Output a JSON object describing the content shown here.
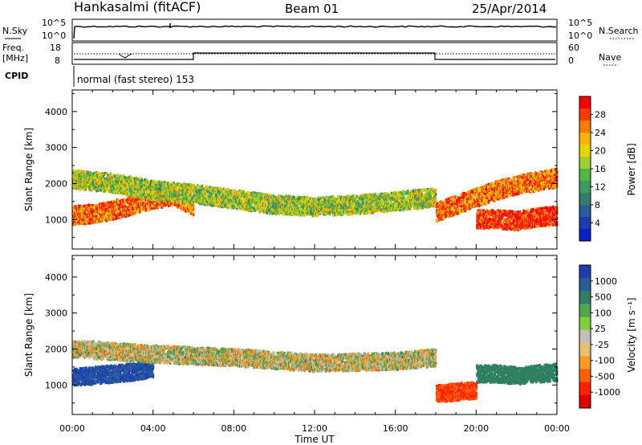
{
  "header": {
    "station": "Hankasalmi (fitACF)",
    "beam": "Beam 01",
    "date": "25/Apr/2014"
  },
  "noise_panel": {
    "left_label": "N.Sky",
    "left_ticks": [
      "10^5",
      "10^0"
    ],
    "right_ticks": [
      "10^5",
      "10^0"
    ],
    "right_label": "N.Search",
    "right_label_style": "dotted"
  },
  "freq_panel": {
    "left_label_1": "Freq.",
    "left_label_2": "[MHz]",
    "left_ticks": [
      "18",
      "8"
    ],
    "cpid_label": "CPID",
    "right_ticks": [
      "60",
      "0"
    ],
    "right_label": "Nave",
    "right_label_style": "dotted",
    "mode_text": "normal (fast stereo) 153"
  },
  "x_axis": {
    "title": "Time UT",
    "ticks": [
      "00:00",
      "04:00",
      "08:00",
      "12:00",
      "16:00",
      "20:00",
      "00:00"
    ]
  },
  "power_panel": {
    "ylabel": "Slant Range [km]",
    "yticks": [
      "4000",
      "3000",
      "2000",
      "1000"
    ],
    "colorbar_label": "Power [dB]",
    "colorbar_ticks": [
      "28",
      "24",
      "20",
      "16",
      "12",
      "8",
      "4"
    ],
    "colorbar_colors": [
      "#ff0000",
      "#ff3a00",
      "#ff7a00",
      "#ffb000",
      "#e6d400",
      "#a0cf30",
      "#4fb840",
      "#3a9a60",
      "#2f7f6a",
      "#2a5e9a",
      "#1e3db0",
      "#0a1ed0"
    ]
  },
  "velocity_panel": {
    "ylabel": "Slant Range [km]",
    "yticks": [
      "4000",
      "3000",
      "2000",
      "1000"
    ],
    "colorbar_label": "Velocity [m s⁻¹]",
    "colorbar_ticks": [
      "1000",
      "500",
      "100",
      "25",
      "-25",
      "-100",
      "-500",
      "-1000"
    ],
    "colorbar_colors": [
      "#1e3db0",
      "#2a5e9a",
      "#2f8060",
      "#4fa850",
      "#7fcf3a",
      "#c0c0b8",
      "#e8c070",
      "#ff9a20",
      "#ff6000",
      "#ff2000",
      "#e00000"
    ]
  },
  "chart_data": [
    {
      "type": "heatmap",
      "title": "Hankasalmi (fitACF) Beam 01 25/Apr/2014",
      "quantity": "Power [dB]",
      "xlabel": "Time UT",
      "ylabel": "Slant Range [km]",
      "xlim": [
        0,
        24
      ],
      "ylim": [
        180,
        4600
      ],
      "colorbar_range": [
        0,
        30
      ],
      "bands": [
        {
          "t": [
            0,
            1,
            2,
            3,
            4,
            5,
            6
          ],
          "range_center": [
            1100,
            1150,
            1250,
            1400,
            1550,
            1650,
            1350
          ],
          "dominant_power": 24
        },
        {
          "t": [
            0,
            2,
            4,
            6,
            8,
            10,
            12,
            14,
            16,
            18
          ],
          "range_center": [
            2100,
            2000,
            1800,
            1700,
            1550,
            1400,
            1350,
            1400,
            1500,
            1600
          ],
          "dominant_power": 16
        },
        {
          "t": [
            18,
            19,
            20,
            21,
            22,
            23,
            24
          ],
          "range_center": [
            1200,
            1400,
            1600,
            1800,
            1950,
            2050,
            2150
          ],
          "dominant_power": 24
        },
        {
          "t": [
            20,
            21,
            22,
            23,
            24
          ],
          "range_center": [
            1000,
            1000,
            950,
            1050,
            1100
          ],
          "dominant_power": 28
        }
      ]
    },
    {
      "type": "heatmap",
      "quantity": "Velocity [m s⁻¹]",
      "xlabel": "Time UT",
      "ylabel": "Slant Range [km]",
      "xlim": [
        0,
        24
      ],
      "ylim": [
        180,
        4600
      ],
      "colorbar_range": [
        -1000,
        1000
      ],
      "bands": [
        {
          "t": [
            0,
            1,
            2,
            3,
            4
          ],
          "range_center": [
            1200,
            1250,
            1300,
            1350,
            1450
          ],
          "dominant_velocity": 700
        },
        {
          "t": [
            0,
            4,
            8,
            12,
            16,
            18
          ],
          "range_center": [
            2000,
            1850,
            1750,
            1600,
            1650,
            1750
          ],
          "dominant_velocity": 0
        },
        {
          "t": [
            20,
            21,
            22,
            23,
            24
          ],
          "range_center": [
            1300,
            1300,
            1250,
            1300,
            1350
          ],
          "dominant_velocity": 150
        },
        {
          "t": [
            18,
            19,
            20
          ],
          "range_center": [
            750,
            800,
            850
          ],
          "dominant_velocity": -300
        }
      ]
    }
  ]
}
